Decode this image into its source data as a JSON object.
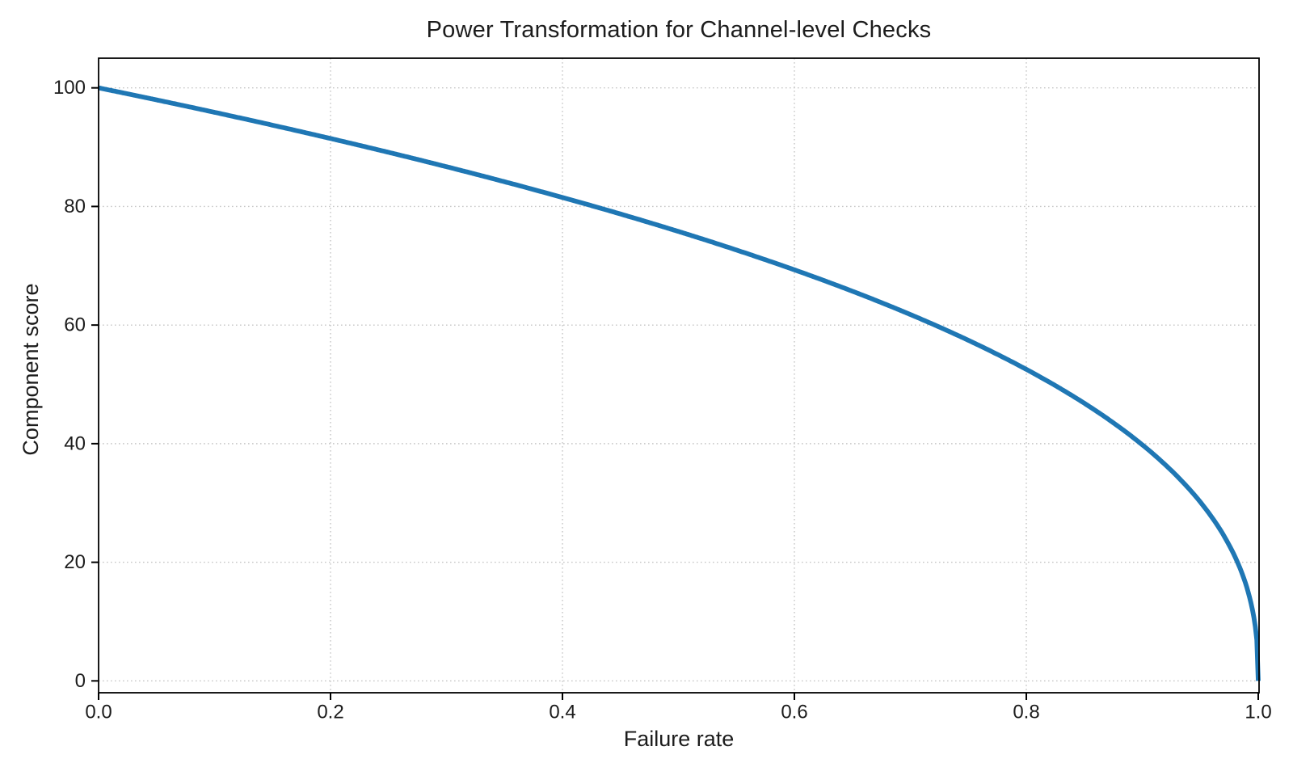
{
  "chart_data": {
    "type": "line",
    "title": "Power Transformation for Channel-level Checks",
    "xlabel": "Failure rate",
    "ylabel": "Component score",
    "xlim": [
      0.0,
      1.0
    ],
    "ylim": [
      -2,
      105
    ],
    "xticks": [
      0.0,
      0.2,
      0.4,
      0.6,
      0.8,
      1.0
    ],
    "xtick_labels": [
      "0.0",
      "0.2",
      "0.4",
      "0.6",
      "0.8",
      "1.0"
    ],
    "yticks": [
      0,
      20,
      40,
      60,
      80,
      100
    ],
    "ytick_labels": [
      "0",
      "20",
      "40",
      "60",
      "80",
      "100"
    ],
    "grid": "dotted",
    "legend": "none",
    "curve": {
      "formula": "y = 100 * (1 - x)^0.4",
      "scale": 100,
      "exponent": 0.4
    },
    "series": [
      {
        "name": "component score",
        "x": [
          0.0,
          0.05,
          0.1,
          0.15,
          0.2,
          0.25,
          0.3,
          0.35,
          0.4,
          0.45,
          0.5,
          0.55,
          0.6,
          0.65,
          0.7,
          0.75,
          0.8,
          0.85,
          0.9,
          0.95,
          0.98,
          0.99,
          0.995,
          1.0
        ],
        "y": [
          100.0,
          98.0,
          95.9,
          93.7,
          91.5,
          89.1,
          86.7,
          84.2,
          81.5,
          78.7,
          75.8,
          72.7,
          69.3,
          65.7,
          61.8,
          57.4,
          52.5,
          46.8,
          39.8,
          30.2,
          20.9,
          15.8,
          12.0,
          0.0
        ]
      }
    ]
  },
  "colors": {
    "line": "#1f77b4",
    "text": "#1c1c1c",
    "grid": "#c6c6c6",
    "spine": "#000000",
    "background": "#ffffff"
  }
}
